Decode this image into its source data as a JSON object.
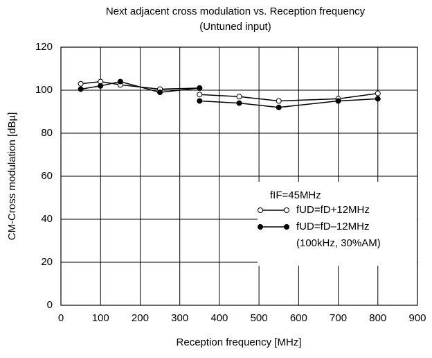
{
  "chart_data": {
    "type": "line",
    "title": "Next adjacent cross modulation vs. Reception frequency",
    "subtitle": "(Untuned input)",
    "x_label": "Reception frequency [MHz]",
    "y_label": "CM-Cross modulation [dBµ]",
    "xlim": [
      0,
      900
    ],
    "xticks": [
      0,
      100,
      200,
      300,
      400,
      500,
      600,
      700,
      800,
      900
    ],
    "ylim": [
      0,
      120
    ],
    "yticks": [
      0,
      20,
      40,
      60,
      80,
      100,
      120
    ],
    "grid": true,
    "legend_title": "fIF=45MHz",
    "legend_note": "(100kHz, 30%AM)",
    "legend_position": "lower-right",
    "x": [
      50,
      100,
      150,
      250,
      350,
      350,
      350,
      450,
      550,
      700,
      800
    ],
    "series": [
      {
        "name": "fUD=fD+12MHz",
        "color": "#000000",
        "marker": "open",
        "values": [
          103,
          104,
          102.5,
          100.5,
          101,
          null,
          98,
          97,
          95,
          96,
          98.5
        ]
      },
      {
        "name": "fUD=fD–12MHz",
        "color": "#000000",
        "marker": "filled",
        "values": [
          100.5,
          102,
          104,
          99,
          101,
          null,
          95,
          94,
          92,
          95,
          96
        ]
      }
    ]
  }
}
